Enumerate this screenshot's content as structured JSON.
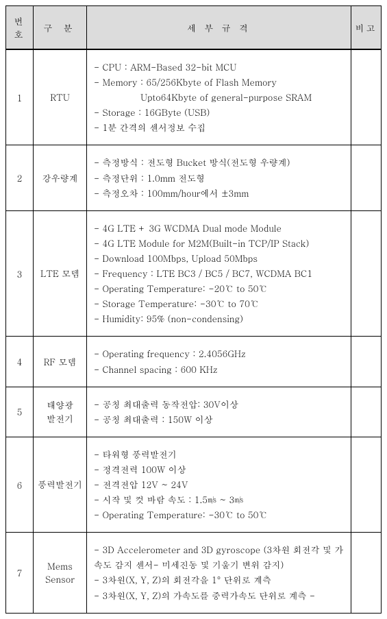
{
  "table": {
    "headers": {
      "num": "번호",
      "category": "구 분",
      "spec": "세 부 규 격",
      "note": "비고"
    },
    "rows": [
      {
        "num": "1",
        "category": "RTU",
        "specs": [
          "- CPU : ARM-Based 32-bit MCU",
          "- Memory : 65/256Kbyte of Flash Memory",
          "Upto64Kbyte of general-purpose SRAM",
          "- Storage : 16GByte (USB)",
          "- 1분 간격의 센서정보 수집"
        ],
        "indent_idx": [
          2
        ],
        "note": ""
      },
      {
        "num": "2",
        "category": "강우량계",
        "specs": [
          "- 측정방식 : 전도형 Bucket 방식(전도형 우량계)",
          "- 측정단위 : 1.0mm 전도형",
          "- 측정오차 : 100mm/hour에서 ±3mm"
        ],
        "indent_idx": [],
        "note": ""
      },
      {
        "num": "3",
        "category": "LTE 모뎀",
        "specs": [
          "- 4G LTE + 3G WCDMA Dual mode Module",
          "- 4G LTE Module for M2M(Built-in TCP/IP Stack)",
          "- Download 100Mbps, Upload 50Mbps",
          "- Frequency :  LTE  BC3 / BC5 / BC7,   WCDMA BC1",
          "- Operating Temperature: -20℃ to 50℃",
          "- Storage Temperature: -30℃ to 70℃",
          "- Humidity: 95% (non-condensing)"
        ],
        "indent_idx": [],
        "note": ""
      },
      {
        "num": "4",
        "category": "RF 모뎀",
        "specs": [
          "- Operating frequency : 2.4056GHz",
          "- Channel spacing : 600 KHz"
        ],
        "indent_idx": [],
        "note": ""
      },
      {
        "num": "5",
        "category": "태양광\n발전기",
        "specs": [
          "- 공칭 최대출력 동작전압:  30V이상",
          "- 공칭 최대출력 : 150W 이상"
        ],
        "indent_idx": [],
        "note": ""
      },
      {
        "num": "6",
        "category": "풍력발전기",
        "specs": [
          "- 타워형 풍력발전기",
          "- 정격전력 100W 이상",
          "- 전격전압 12V ~ 24V",
          "- 시작 및 컷 바람 속도 :  1.5㎧ ~ 3㎧",
          "- Operating Temperature: -30℃ to 50℃"
        ],
        "indent_idx": [],
        "note": ""
      },
      {
        "num": "7",
        "category": "Mems\nSensor",
        "specs": [
          "- 3D Accelerometer and 3D gyroscope (3차원 회전각 및 가속도 감지 센서- 미세진동 및 기울기 변위 감지)",
          "- 3차원(X, Y, Z)의 회전각을 1° 단위로 계측",
          "- 3차원(X, Y, Z)의 가속도를 중력가속도 단위로 계측 -"
        ],
        "indent_idx": [],
        "note": ""
      }
    ]
  }
}
